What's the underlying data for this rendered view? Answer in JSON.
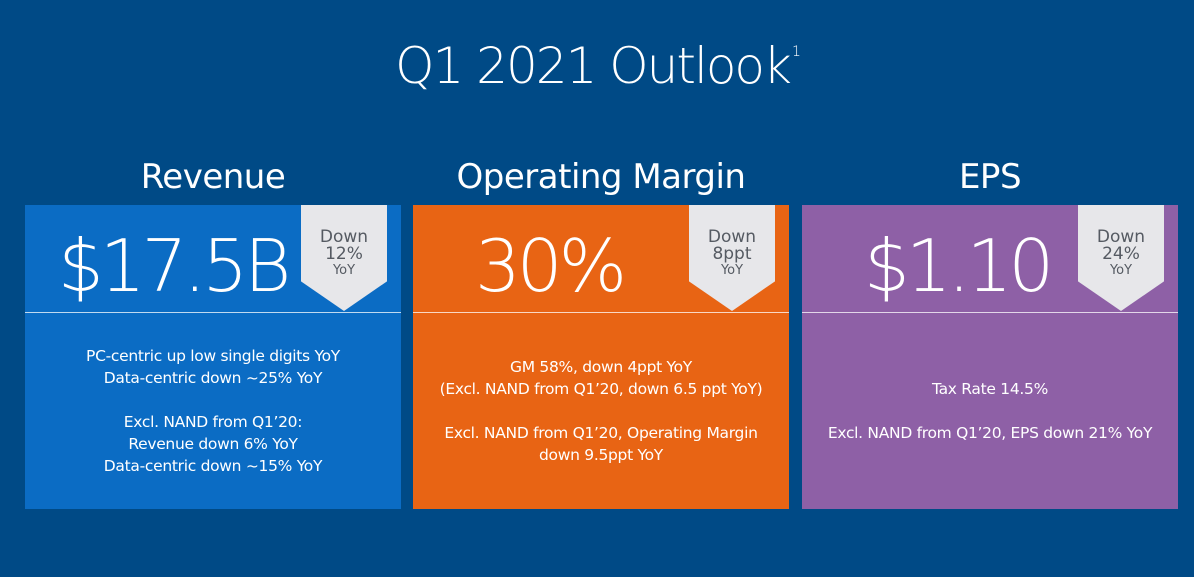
{
  "slide": {
    "title": "Q1 2021 Outlook",
    "title_footnote": "1"
  },
  "colors": {
    "background": "#004a86",
    "revenue": "#0b6cc4",
    "operating_margin": "#e86414",
    "eps": "#8e60a6",
    "badge": "#e7e7ea"
  },
  "cards": [
    {
      "heading": "Revenue",
      "value": "$17.5B",
      "badge": {
        "line1": "Down",
        "line2": "12%",
        "line3": "YoY"
      },
      "body_block1": [
        "PC-centric up low single digits YoY",
        "Data-centric down ~25% YoY"
      ],
      "body_block2": [
        "Excl. NAND from Q1’20:",
        "Revenue down 6% YoY",
        "Data-centric down ~15% YoY"
      ]
    },
    {
      "heading": "Operating Margin",
      "value": "30%",
      "badge": {
        "line1": "Down",
        "line2": "8ppt",
        "line3": "YoY"
      },
      "body_block1": [
        "GM 58%, down 4ppt YoY",
        "(Excl. NAND from Q1’20, down 6.5 ppt YoY)"
      ],
      "body_block2": [
        "Excl. NAND from Q1’20, Operating Margin",
        "down 9.5ppt YoY"
      ]
    },
    {
      "heading": "EPS",
      "value": "$1.10",
      "badge": {
        "line1": "Down",
        "line2": "24%",
        "line3": "YoY"
      },
      "body_block1": [
        "Tax Rate 14.5%"
      ],
      "body_block2": [
        "Excl. NAND from Q1’20, EPS down 21% YoY"
      ]
    }
  ]
}
